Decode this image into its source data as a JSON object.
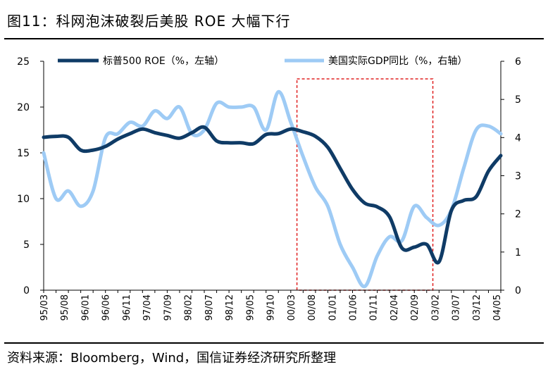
{
  "title": "图11：科网泡沫破裂后美股 ROE 大幅下行",
  "source": "资料来源：Bloomberg，Wind，国信证券经济研究所整理",
  "colors": {
    "roe": "#0f3b66",
    "gdp": "#9ecbf5",
    "highlight": "#e02020"
  },
  "chart_data": {
    "type": "line",
    "x_tick_labels": [
      "95/03",
      "95/08",
      "96/01",
      "96/06",
      "96/11",
      "97/04",
      "97/09",
      "98/02",
      "98/07",
      "98/12",
      "99/05",
      "99/10",
      "00/03",
      "00/08",
      "01/01",
      "01/06",
      "01/11",
      "02/04",
      "02/09",
      "03/02",
      "03/07",
      "03/12",
      "04/05"
    ],
    "x_quarters": [
      "95/03",
      "95/06",
      "95/09",
      "95/12",
      "96/03",
      "96/06",
      "96/09",
      "96/12",
      "97/03",
      "97/06",
      "97/09",
      "97/12",
      "98/03",
      "98/06",
      "98/09",
      "98/12",
      "99/03",
      "99/06",
      "99/09",
      "99/12",
      "00/03",
      "00/06",
      "00/09",
      "00/12",
      "01/03",
      "01/06",
      "01/09",
      "01/12",
      "02/03",
      "02/06",
      "02/09",
      "02/12",
      "03/03",
      "03/06",
      "03/09",
      "03/12",
      "04/03",
      "04/06"
    ],
    "left_axis": {
      "min": 0,
      "max": 25,
      "ticks": [
        0,
        5,
        10,
        15,
        20,
        25
      ]
    },
    "right_axis": {
      "min": 0,
      "max": 6,
      "ticks": [
        0,
        1,
        2,
        3,
        4,
        5,
        6
      ]
    },
    "legend_position": "top",
    "highlight_range": [
      "00/06",
      "02/12"
    ],
    "series": [
      {
        "name": "标普500 ROE（%，左轴）",
        "axis": "left",
        "values": [
          16.7,
          16.8,
          16.7,
          15.3,
          15.3,
          15.7,
          16.5,
          17.1,
          17.6,
          17.2,
          16.9,
          16.6,
          17.2,
          17.8,
          16.3,
          16.1,
          16.1,
          16.0,
          17.0,
          17.1,
          17.6,
          17.3,
          16.8,
          15.6,
          13.3,
          11.0,
          9.5,
          9.1,
          8.0,
          4.6,
          4.7,
          5.0,
          3.1,
          8.7,
          9.8,
          10.2,
          13.0,
          14.7
        ]
      },
      {
        "name": "美国实际GDP同比（%，右轴）",
        "axis": "right",
        "values": [
          3.6,
          2.4,
          2.6,
          2.2,
          2.6,
          4.0,
          4.1,
          4.4,
          4.3,
          4.7,
          4.5,
          4.8,
          4.1,
          4.2,
          4.9,
          4.8,
          4.8,
          4.8,
          4.2,
          5.2,
          4.4,
          3.5,
          2.7,
          2.2,
          1.2,
          0.6,
          0.1,
          0.9,
          1.4,
          1.3,
          2.2,
          1.9,
          1.7,
          2.1,
          3.2,
          4.2,
          4.3,
          4.1
        ]
      }
    ]
  }
}
